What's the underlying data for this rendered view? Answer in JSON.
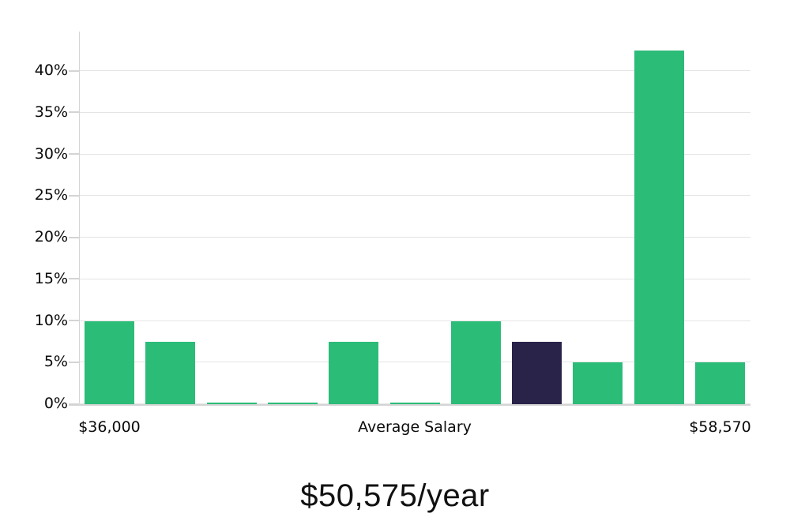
{
  "chart_data": {
    "type": "bar",
    "title": "$50,575/year",
    "values": [
      10,
      7.5,
      0.2,
      0.2,
      7.5,
      0.2,
      10,
      7.5,
      5,
      42.5,
      5
    ],
    "highlighted_index": 7,
    "x_tick_labels": [
      {
        "bar_index": 0,
        "label": "$36,000"
      },
      {
        "bar_index": 5,
        "label": "Average Salary"
      },
      {
        "bar_index": 10,
        "label": "$58,570"
      }
    ],
    "y_ticks": [
      0,
      5,
      10,
      15,
      20,
      25,
      30,
      35,
      40
    ],
    "y_tick_suffix": "%",
    "ylim": [
      0,
      45
    ],
    "grid": true,
    "legend": false,
    "colors": {
      "bar": "#2bbc78",
      "highlight": "#29234a",
      "gridline": "#e4e4e4",
      "axis": "#d4d4d4",
      "text": "#0b0b0b"
    }
  }
}
